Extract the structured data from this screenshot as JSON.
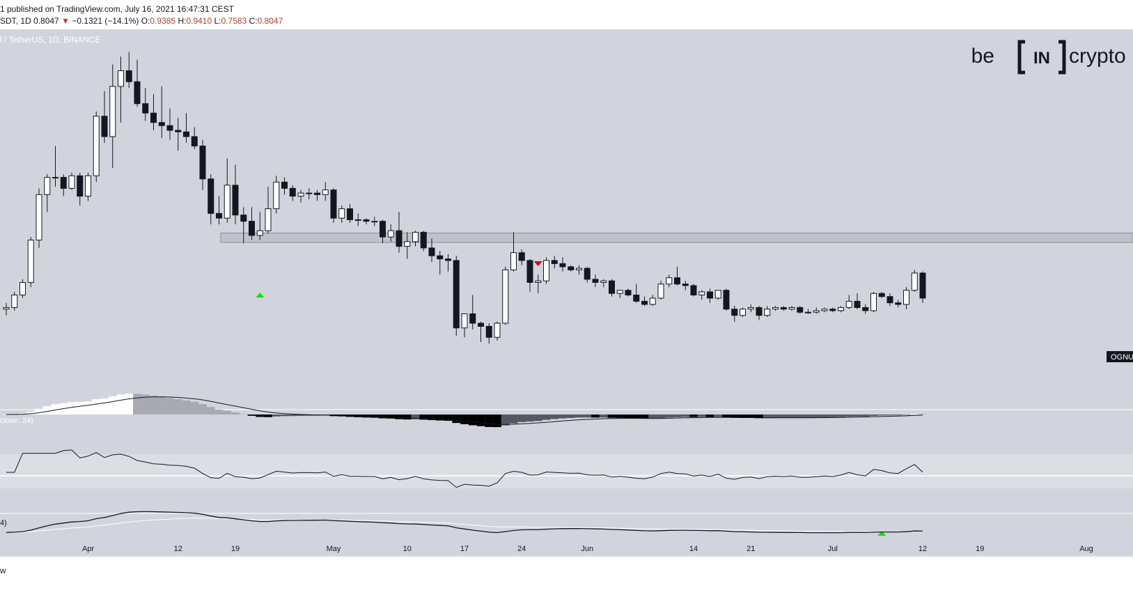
{
  "header": {
    "published_text": "1 published on TradingView.com, July 16, 2021 16:47:31 CEST",
    "symbol": "SDT, 1D",
    "last": "0.8047",
    "change_arrow": "▼",
    "change": "−0.1321 (−14.1%)",
    "o_label": "O:",
    "o_value": "0.9385",
    "h_label": "H:",
    "h_value": "0.9410",
    "l_label": "L:",
    "l_value": "0.7583",
    "c_label": "C:",
    "c_value": "0.8047"
  },
  "pair_label": "l / TetherUS, 1D, BINANCE",
  "logo": {
    "left": "be",
    "middle": "IN",
    "right": "crypto"
  },
  "price_tag": "OGNU",
  "indicator_labels": {
    "macd": "close, 24)",
    "stoch": "4)"
  },
  "footer_glyph": "w",
  "colors": {
    "background": "#d1d4dc",
    "up_candle": "#ffffff",
    "down_candle": "#131722",
    "zone": "#bfc2ca",
    "up_marker": "#00e600",
    "down_marker": "#e00000"
  },
  "chart_data": {
    "type": "candlestick",
    "timeframe": "1D",
    "pair": "TetherUS",
    "exchange": "BINANCE",
    "x_tick_labels": [
      "Apr",
      "12",
      "19",
      "May",
      "10",
      "17",
      "24",
      "Jun",
      "14",
      "21",
      "Jul",
      "12",
      "19",
      "Aug"
    ],
    "x_tick_dates": [
      "2021-04-01",
      "2021-04-12",
      "2021-04-19",
      "2021-05-01",
      "2021-05-10",
      "2021-05-17",
      "2021-05-24",
      "2021-06-01",
      "2021-06-14",
      "2021-06-21",
      "2021-07-01",
      "2021-07-12",
      "2021-07-19",
      "2021-08-01"
    ],
    "first_candle_date": "2021-03-22",
    "y_range": [
      0.45,
      2.64
    ],
    "horizontal_zone": {
      "low": 1.365,
      "high": 1.425
    },
    "markers": [
      {
        "date": "2021-04-22",
        "type": "up"
      },
      {
        "date": "2021-05-26",
        "type": "down"
      },
      {
        "date": "2021-07-07",
        "type": "up",
        "panel": "stochastic"
      }
    ],
    "ohlc": [
      [
        0.94,
        0.98,
        0.9,
        0.95
      ],
      [
        0.95,
        1.05,
        0.93,
        1.03
      ],
      [
        1.03,
        1.13,
        1.01,
        1.11
      ],
      [
        1.11,
        1.4,
        1.08,
        1.38
      ],
      [
        1.38,
        1.71,
        1.33,
        1.67
      ],
      [
        1.67,
        1.8,
        1.56,
        1.78
      ],
      [
        1.78,
        1.98,
        1.72,
        1.78
      ],
      [
        1.78,
        1.8,
        1.66,
        1.71
      ],
      [
        1.71,
        1.81,
        1.7,
        1.79
      ],
      [
        1.79,
        1.81,
        1.6,
        1.66
      ],
      [
        1.66,
        1.81,
        1.63,
        1.79
      ],
      [
        1.79,
        2.2,
        1.75,
        2.17
      ],
      [
        2.17,
        2.33,
        2.0,
        2.04
      ],
      [
        2.04,
        2.5,
        1.84,
        2.36
      ],
      [
        2.36,
        2.55,
        2.13,
        2.46
      ],
      [
        2.46,
        2.58,
        2.35,
        2.39
      ],
      [
        2.39,
        2.53,
        2.23,
        2.25
      ],
      [
        2.25,
        2.35,
        2.14,
        2.19
      ],
      [
        2.19,
        2.31,
        2.08,
        2.13
      ],
      [
        2.13,
        2.36,
        2.03,
        2.11
      ],
      [
        2.11,
        2.22,
        2.02,
        2.08
      ],
      [
        2.08,
        2.16,
        1.95,
        2.07
      ],
      [
        2.07,
        2.19,
        2.0,
        2.04
      ],
      [
        2.04,
        2.1,
        1.96,
        1.98
      ],
      [
        1.98,
        2.02,
        1.7,
        1.77
      ],
      [
        1.77,
        1.8,
        1.48,
        1.55
      ],
      [
        1.55,
        1.66,
        1.48,
        1.52
      ],
      [
        1.52,
        1.9,
        1.49,
        1.73
      ],
      [
        1.73,
        1.86,
        1.48,
        1.54
      ],
      [
        1.54,
        1.59,
        1.36,
        1.5
      ],
      [
        1.5,
        1.59,
        1.38,
        1.41
      ],
      [
        1.41,
        1.56,
        1.38,
        1.44
      ],
      [
        1.44,
        1.72,
        1.42,
        1.58
      ],
      [
        1.58,
        1.79,
        1.55,
        1.75
      ],
      [
        1.75,
        1.78,
        1.67,
        1.71
      ],
      [
        1.71,
        1.73,
        1.63,
        1.66
      ],
      [
        1.66,
        1.7,
        1.62,
        1.68
      ],
      [
        1.68,
        1.71,
        1.64,
        1.68
      ],
      [
        1.68,
        1.7,
        1.63,
        1.67
      ],
      [
        1.67,
        1.75,
        1.63,
        1.7
      ],
      [
        1.7,
        1.71,
        1.49,
        1.52
      ],
      [
        1.52,
        1.6,
        1.49,
        1.58
      ],
      [
        1.58,
        1.61,
        1.49,
        1.51
      ],
      [
        1.51,
        1.55,
        1.47,
        1.51
      ],
      [
        1.51,
        1.52,
        1.48,
        1.5
      ],
      [
        1.5,
        1.53,
        1.47,
        1.5
      ],
      [
        1.5,
        1.51,
        1.36,
        1.4
      ],
      [
        1.4,
        1.48,
        1.37,
        1.44
      ],
      [
        1.44,
        1.56,
        1.3,
        1.34
      ],
      [
        1.34,
        1.43,
        1.26,
        1.37
      ],
      [
        1.37,
        1.44,
        1.34,
        1.43
      ],
      [
        1.43,
        1.44,
        1.31,
        1.33
      ],
      [
        1.33,
        1.39,
        1.24,
        1.28
      ],
      [
        1.28,
        1.31,
        1.16,
        1.26
      ],
      [
        1.26,
        1.29,
        1.18,
        1.25
      ],
      [
        1.25,
        1.28,
        0.77,
        0.82
      ],
      [
        0.82,
        0.91,
        0.76,
        0.91
      ],
      [
        0.91,
        1.03,
        0.81,
        0.85
      ],
      [
        0.85,
        0.86,
        0.73,
        0.83
      ],
      [
        0.83,
        0.85,
        0.72,
        0.76
      ],
      [
        0.76,
        0.86,
        0.74,
        0.85
      ],
      [
        0.85,
        1.21,
        0.84,
        1.19
      ],
      [
        1.19,
        1.43,
        1.18,
        1.3
      ],
      [
        1.3,
        1.32,
        1.22,
        1.25
      ],
      [
        1.25,
        1.26,
        1.05,
        1.11
      ],
      [
        1.11,
        1.16,
        1.04,
        1.12
      ],
      [
        1.12,
        1.27,
        1.1,
        1.25
      ],
      [
        1.25,
        1.28,
        1.2,
        1.23
      ],
      [
        1.23,
        1.27,
        1.18,
        1.21
      ],
      [
        1.21,
        1.22,
        1.18,
        1.19
      ],
      [
        1.19,
        1.22,
        1.16,
        1.2
      ],
      [
        1.2,
        1.21,
        1.11,
        1.13
      ],
      [
        1.13,
        1.16,
        1.08,
        1.11
      ],
      [
        1.11,
        1.13,
        1.08,
        1.12
      ],
      [
        1.12,
        1.13,
        1.02,
        1.04
      ],
      [
        1.04,
        1.06,
        1.01,
        1.06
      ],
      [
        1.06,
        1.07,
        1.02,
        1.03
      ],
      [
        1.03,
        1.1,
        0.98,
        0.99
      ],
      [
        0.99,
        1.02,
        0.96,
        0.97
      ],
      [
        0.97,
        1.03,
        0.96,
        1.01
      ],
      [
        1.01,
        1.12,
        1.0,
        1.1
      ],
      [
        1.1,
        1.16,
        1.08,
        1.14
      ],
      [
        1.14,
        1.21,
        1.09,
        1.1
      ],
      [
        1.1,
        1.12,
        1.06,
        1.09
      ],
      [
        1.09,
        1.1,
        1.02,
        1.03
      ],
      [
        1.03,
        1.06,
        1.0,
        1.05
      ],
      [
        1.05,
        1.07,
        0.98,
        1.01
      ],
      [
        1.01,
        1.06,
        1.0,
        1.06
      ],
      [
        1.06,
        1.07,
        0.93,
        0.94
      ],
      [
        0.94,
        0.96,
        0.86,
        0.9
      ],
      [
        0.9,
        0.95,
        0.89,
        0.94
      ],
      [
        0.94,
        0.97,
        0.92,
        0.95
      ],
      [
        0.95,
        0.96,
        0.87,
        0.9
      ],
      [
        0.9,
        0.96,
        0.89,
        0.94
      ],
      [
        0.94,
        0.96,
        0.93,
        0.95
      ],
      [
        0.95,
        0.96,
        0.93,
        0.94
      ],
      [
        0.94,
        0.96,
        0.93,
        0.95
      ],
      [
        0.95,
        0.96,
        0.91,
        0.92
      ],
      [
        0.92,
        0.94,
        0.91,
        0.92
      ],
      [
        0.92,
        0.95,
        0.91,
        0.93
      ],
      [
        0.93,
        0.95,
        0.92,
        0.94
      ],
      [
        0.94,
        0.95,
        0.92,
        0.93
      ],
      [
        0.93,
        0.96,
        0.92,
        0.95
      ],
      [
        0.95,
        1.03,
        0.94,
        0.99
      ],
      [
        0.99,
        1.04,
        0.94,
        0.95
      ],
      [
        0.95,
        0.97,
        0.91,
        0.93
      ],
      [
        0.93,
        1.05,
        0.92,
        1.04
      ],
      [
        1.04,
        1.05,
        1.01,
        1.02
      ],
      [
        1.02,
        1.04,
        0.96,
        0.98
      ],
      [
        0.98,
        1.0,
        0.95,
        0.97
      ],
      [
        0.97,
        1.08,
        0.94,
        1.06
      ],
      [
        1.06,
        1.19,
        1.05,
        1.17
      ],
      [
        1.17,
        1.18,
        0.98,
        1.01
      ]
    ]
  }
}
